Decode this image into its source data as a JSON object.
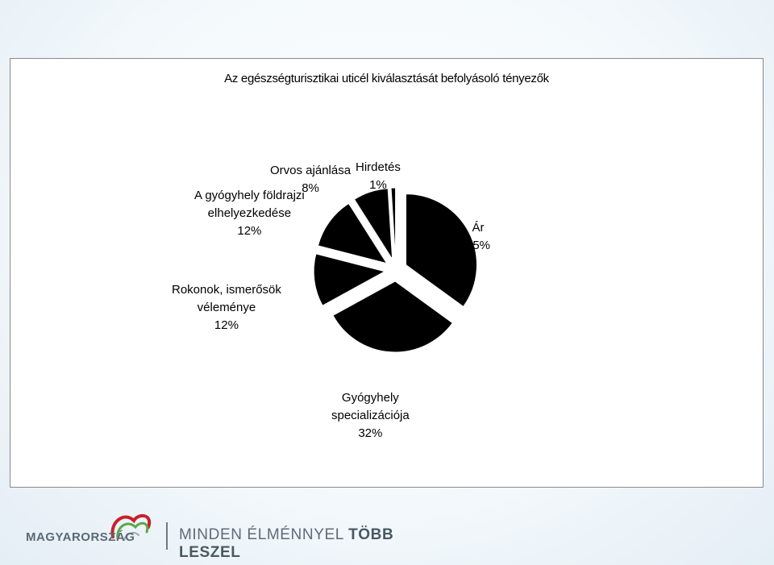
{
  "chart_data": {
    "type": "pie",
    "title": "Az egészségturisztikai uticél kiválasztását befolyásoló tényezők",
    "slices": [
      {
        "label_lines": [
          "Ár",
          "35%"
        ],
        "value": 35
      },
      {
        "label_lines": [
          "Gyógyhely",
          "specializációja",
          "32%"
        ],
        "value": 32
      },
      {
        "label_lines": [
          "Rokonok, ismerősök",
          "véleménye",
          "12%"
        ],
        "value": 12
      },
      {
        "label_lines": [
          "A gyógyhely földrajzi",
          "elhelyezkedése",
          "12%"
        ],
        "value": 12
      },
      {
        "label_lines": [
          "Orvos ajánlása",
          "8%"
        ],
        "value": 8
      },
      {
        "label_lines": [
          "Hirdetés",
          "1%"
        ],
        "value": 1
      }
    ],
    "slice_color": "#000000",
    "exploded": true
  },
  "footer": {
    "brand": "MAGYARORSZÁG",
    "slogan_part1": "MINDEN ÉLMÉNNYEL ",
    "slogan_part2": "TÖBB LESZEL"
  }
}
